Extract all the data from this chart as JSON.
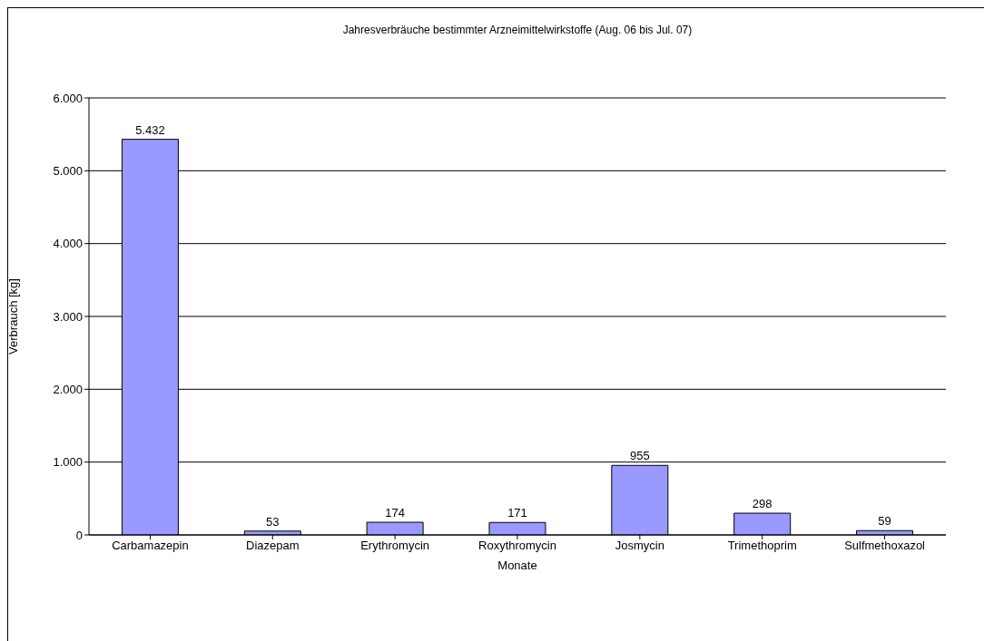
{
  "chart_data": {
    "type": "bar",
    "title": "Jahresverbräuche bestimmter Arzneimittelwirkstoffe (Aug. 06 bis Jul. 07)",
    "xlabel": "Monate",
    "ylabel": "Verbrauch [kg]",
    "categories": [
      "Carbamazepin",
      "Diazepam",
      "Erythromycin",
      "Roxythromycin",
      "Josmycin",
      "Trimethoprim",
      "Sulfmethoxazol"
    ],
    "values": [
      5432,
      53,
      174,
      171,
      955,
      298,
      59
    ],
    "value_labels": [
      "5.432",
      "53",
      "174",
      "171",
      "955",
      "298",
      "59"
    ],
    "color": "#9999ff",
    "ylim": [
      0,
      6000
    ],
    "yticks": [
      {
        "value": 0,
        "label": "0"
      },
      {
        "value": 1000,
        "label": "1.000"
      },
      {
        "value": 2000,
        "label": "2.000"
      },
      {
        "value": 3000,
        "label": "3.000"
      },
      {
        "value": 4000,
        "label": "4.000"
      },
      {
        "value": 5000,
        "label": "5.000"
      },
      {
        "value": 6000,
        "label": "6.000"
      }
    ],
    "grid": "y",
    "legend": false
  }
}
